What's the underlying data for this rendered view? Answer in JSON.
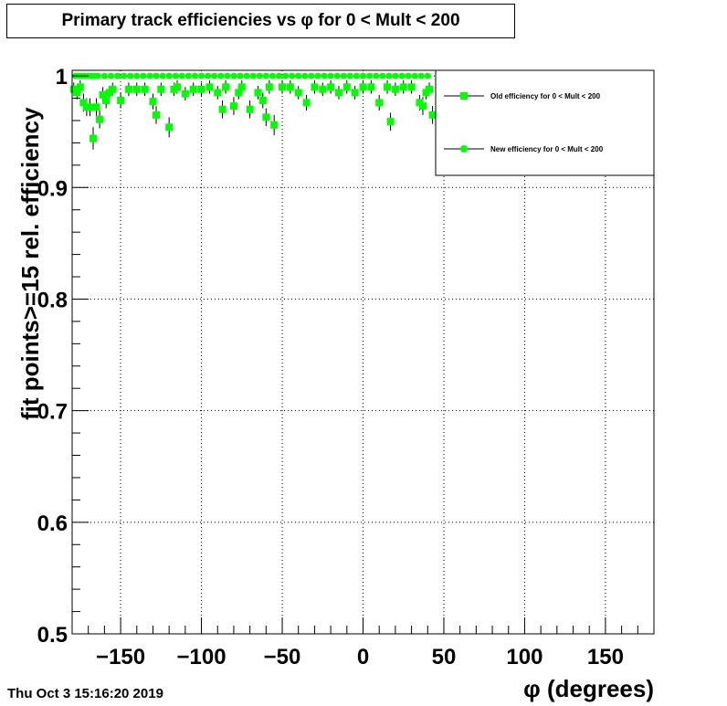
{
  "title": "Primary track efficiencies vs φ for 0 < Mult < 200",
  "timestamp": "Thu Oct  3 15:16:20 2019",
  "chart_data": {
    "type": "scatter",
    "title": "Primary track efficiencies vs φ for 0 < Mult < 200",
    "xlabel": "φ (degrees)",
    "ylabel": "fit points>=15 rel. efficiency",
    "xlim": [
      -180,
      180
    ],
    "ylim": [
      0.5,
      1.005
    ],
    "x_ticks": [
      -150,
      -100,
      -50,
      0,
      50,
      100,
      150
    ],
    "x_tick_labels": [
      "−150",
      "−100",
      "−50",
      "0",
      "50",
      "100",
      "150"
    ],
    "y_ticks": [
      0.5,
      0.6,
      0.7,
      0.8,
      0.9,
      1
    ],
    "y_tick_labels": [
      "0.5",
      "0.6",
      "0.7",
      "0.8",
      "0.9",
      "1"
    ],
    "grid": true,
    "legend_position": "top-right",
    "colors": {
      "series": "#00ff00",
      "axis": "#000000"
    },
    "series": [
      {
        "name": "Old efficiency  for 0 < Mult < 200",
        "marker": "square",
        "x": [
          -179,
          -177,
          -175,
          -173,
          -171,
          -169,
          -167,
          -165,
          -163,
          -161,
          -159,
          -157,
          -155,
          -150,
          -145,
          -140,
          -135,
          -130,
          -128,
          -125,
          -120,
          -117,
          -115,
          -110,
          -105,
          -100,
          -95,
          -90,
          -87,
          -85,
          -80,
          -77,
          -75,
          -70,
          -65,
          -62,
          -60,
          -58,
          -55,
          -50,
          -45,
          -40,
          -35,
          -30,
          -25,
          -20,
          -15,
          -10,
          -5,
          0,
          5,
          10,
          15,
          17,
          20,
          25,
          30,
          35,
          37,
          39,
          41,
          43
        ],
        "y": [
          0.988,
          0.985,
          0.99,
          0.976,
          0.972,
          0.972,
          0.944,
          0.972,
          0.961,
          0.983,
          0.978,
          0.985,
          0.988,
          0.978,
          0.988,
          0.988,
          0.988,
          0.977,
          0.965,
          0.988,
          0.954,
          0.988,
          0.99,
          0.984,
          0.988,
          0.988,
          0.99,
          0.985,
          0.97,
          0.99,
          0.973,
          0.985,
          0.99,
          0.97,
          0.985,
          0.978,
          0.963,
          0.99,
          0.956,
          0.99,
          0.99,
          0.985,
          0.976,
          0.99,
          0.988,
          0.99,
          0.985,
          0.99,
          0.985,
          0.99,
          0.99,
          0.976,
          0.99,
          0.959,
          0.988,
          0.99,
          0.99,
          0.976,
          0.973,
          0.985,
          0.988,
          0.965
        ],
        "yerr": [
          0.006,
          0.006,
          0.006,
          0.008,
          0.008,
          0.008,
          0.01,
          0.008,
          0.008,
          0.007,
          0.007,
          0.006,
          0.006,
          0.007,
          0.006,
          0.006,
          0.006,
          0.007,
          0.008,
          0.006,
          0.009,
          0.006,
          0.006,
          0.006,
          0.006,
          0.006,
          0.006,
          0.006,
          0.008,
          0.006,
          0.008,
          0.006,
          0.006,
          0.008,
          0.006,
          0.007,
          0.008,
          0.006,
          0.009,
          0.006,
          0.006,
          0.006,
          0.007,
          0.006,
          0.006,
          0.006,
          0.006,
          0.006,
          0.006,
          0.006,
          0.006,
          0.007,
          0.006,
          0.008,
          0.006,
          0.006,
          0.006,
          0.007,
          0.008,
          0.006,
          0.006,
          0.008
        ]
      },
      {
        "name": "New efficiency  for 0 < Mult < 200",
        "marker": "circle",
        "x": [
          -178,
          -176,
          -174,
          -172,
          -170,
          -168,
          -166,
          -164,
          -160,
          -156,
          -152,
          -148,
          -144,
          -140,
          -136,
          -132,
          -128,
          -124,
          -120,
          -116,
          -112,
          -108,
          -104,
          -100,
          -96,
          -92,
          -88,
          -84,
          -80,
          -76,
          -72,
          -68,
          -64,
          -60,
          -56,
          -52,
          -48,
          -44,
          -40,
          -36,
          -32,
          -28,
          -24,
          -20,
          -16,
          -12,
          -8,
          -4,
          0,
          4,
          8,
          12,
          16,
          20,
          24,
          28,
          32,
          36,
          40
        ],
        "y": [
          1,
          1,
          1,
          1,
          1,
          1,
          1,
          1,
          1,
          1,
          1,
          1,
          1,
          1,
          1,
          1,
          1,
          1,
          1,
          1,
          1,
          1,
          1,
          1,
          1,
          1,
          1,
          1,
          1,
          1,
          1,
          1,
          1,
          1,
          1,
          1,
          1,
          1,
          1,
          1,
          1,
          1,
          1,
          1,
          1,
          1,
          1,
          1,
          1,
          1,
          1,
          1,
          1,
          1,
          1,
          1,
          1,
          1,
          1
        ]
      }
    ]
  }
}
